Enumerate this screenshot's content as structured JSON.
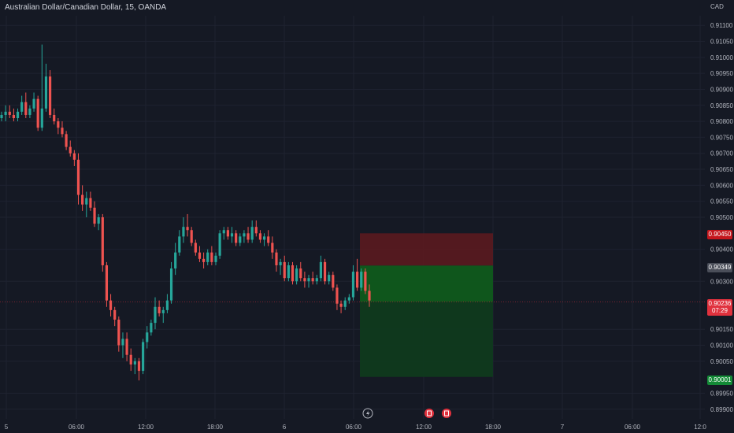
{
  "header": {
    "symbol_title": "Australian Dollar/Canadian Dollar, 15, OANDA",
    "currency": "CAD"
  },
  "price_axis": {
    "ticks": [
      "0.91100",
      "0.91050",
      "0.91000",
      "0.90950",
      "0.90900",
      "0.90850",
      "0.90800",
      "0.90750",
      "0.90700",
      "0.90650",
      "0.90600",
      "0.90550",
      "0.90500",
      "0.90400",
      "0.90300",
      "0.90150",
      "0.90100",
      "0.90050",
      "0.89950",
      "0.89900"
    ],
    "tag_stop": "0.90450",
    "tag_target": "0.90001",
    "tag_close": "0.90349",
    "tag_last_price": "0.90236",
    "tag_last_timer": "07:29"
  },
  "time_axis": {
    "labels": [
      "5",
      "06:00",
      "12:00",
      "18:00",
      "6",
      "06:00",
      "12:00",
      "18:00",
      "7",
      "06:00",
      "12:0"
    ]
  },
  "markers": {
    "flash_icon": "lightning-icon",
    "event_icons": [
      "calendar-event-icon",
      "calendar-event-icon"
    ]
  },
  "colors": {
    "background": "#151924",
    "bull": "#26a69a",
    "bear": "#ef5350",
    "stop_zone": "#5a1a1f",
    "target_zone": "#0f5a1c",
    "target_zone_light": "#0f3a1e"
  },
  "chart_data": {
    "type": "candlestick",
    "symbol": "Australian Dollar/Canadian Dollar, 15, OANDA",
    "ylim": [
      0.8987,
      0.9113
    ],
    "x_labels": [
      "5",
      "06:00",
      "12:00",
      "18:00",
      "6",
      "06:00",
      "12:00",
      "18:00",
      "7",
      "06:00",
      "12:0"
    ],
    "position_tool": {
      "type": "short",
      "entry": 0.90349,
      "stop": 0.9045,
      "target": 0.90001
    },
    "last_price": 0.90236,
    "candles": [
      [
        0.9081,
        0.9083,
        0.908,
        0.9082
      ],
      [
        0.9082,
        0.9085,
        0.908,
        0.9083
      ],
      [
        0.9083,
        0.9085,
        0.9081,
        0.9082
      ],
      [
        0.9082,
        0.9084,
        0.908,
        0.9081
      ],
      [
        0.9081,
        0.9084,
        0.908,
        0.9083
      ],
      [
        0.9083,
        0.9088,
        0.9082,
        0.9086
      ],
      [
        0.9086,
        0.9089,
        0.9081,
        0.9082
      ],
      [
        0.9082,
        0.9085,
        0.9081,
        0.9084
      ],
      [
        0.9084,
        0.9089,
        0.9083,
        0.9087
      ],
      [
        0.9087,
        0.9088,
        0.9077,
        0.9078
      ],
      [
        0.9078,
        0.9104,
        0.9077,
        0.9084
      ],
      [
        0.9084,
        0.9098,
        0.9083,
        0.9094
      ],
      [
        0.9094,
        0.9096,
        0.9081,
        0.9082
      ],
      [
        0.9082,
        0.9084,
        0.9079,
        0.908
      ],
      [
        0.908,
        0.9081,
        0.9076,
        0.9078
      ],
      [
        0.9078,
        0.908,
        0.9075,
        0.9076
      ],
      [
        0.9076,
        0.9077,
        0.9071,
        0.9072
      ],
      [
        0.9072,
        0.9074,
        0.9069,
        0.907
      ],
      [
        0.907,
        0.9071,
        0.9066,
        0.9068
      ],
      [
        0.9068,
        0.907,
        0.9054,
        0.9057
      ],
      [
        0.9057,
        0.906,
        0.9052,
        0.9054
      ],
      [
        0.9054,
        0.9058,
        0.905,
        0.9056
      ],
      [
        0.9056,
        0.9058,
        0.9052,
        0.9053
      ],
      [
        0.9053,
        0.9055,
        0.9047,
        0.9048
      ],
      [
        0.9048,
        0.9051,
        0.9046,
        0.905
      ],
      [
        0.905,
        0.9051,
        0.9033,
        0.9035
      ],
      [
        0.9035,
        0.9036,
        0.9022,
        0.9024
      ],
      [
        0.9024,
        0.9026,
        0.9019,
        0.9021
      ],
      [
        0.9021,
        0.9022,
        0.9016,
        0.9018
      ],
      [
        0.9018,
        0.9019,
        0.9008,
        0.901
      ],
      [
        0.901,
        0.9014,
        0.9006,
        0.9012
      ],
      [
        0.9012,
        0.9014,
        0.9005,
        0.9007
      ],
      [
        0.9007,
        0.9009,
        0.9002,
        0.9004
      ],
      [
        0.9004,
        0.9006,
        0.9001,
        0.9005
      ],
      [
        0.9005,
        0.9006,
        0.8999,
        0.9002
      ],
      [
        0.9002,
        0.9012,
        0.9001,
        0.9011
      ],
      [
        0.9011,
        0.9016,
        0.9009,
        0.9014
      ],
      [
        0.9014,
        0.9018,
        0.9013,
        0.9017
      ],
      [
        0.9017,
        0.9025,
        0.9015,
        0.9022
      ],
      [
        0.9022,
        0.9024,
        0.9019,
        0.902
      ],
      [
        0.902,
        0.9022,
        0.9017,
        0.9021
      ],
      [
        0.9021,
        0.9026,
        0.902,
        0.9024
      ],
      [
        0.9024,
        0.9036,
        0.9023,
        0.9034
      ],
      [
        0.9034,
        0.9042,
        0.9032,
        0.9039
      ],
      [
        0.9039,
        0.9046,
        0.9038,
        0.9044
      ],
      [
        0.9044,
        0.905,
        0.9042,
        0.9047
      ],
      [
        0.9047,
        0.9051,
        0.9044,
        0.9046
      ],
      [
        0.9046,
        0.9047,
        0.9041,
        0.9042
      ],
      [
        0.9042,
        0.9043,
        0.9038,
        0.9039
      ],
      [
        0.9039,
        0.9041,
        0.9036,
        0.9037
      ],
      [
        0.9037,
        0.9039,
        0.9034,
        0.9036
      ],
      [
        0.9036,
        0.904,
        0.9035,
        0.9039
      ],
      [
        0.9039,
        0.9041,
        0.9035,
        0.9036
      ],
      [
        0.9036,
        0.9039,
        0.9035,
        0.9038
      ],
      [
        0.9038,
        0.9046,
        0.9037,
        0.9045
      ],
      [
        0.9045,
        0.9047,
        0.9043,
        0.9046
      ],
      [
        0.9046,
        0.9047,
        0.9043,
        0.9044
      ],
      [
        0.9044,
        0.9047,
        0.9042,
        0.9045
      ],
      [
        0.9045,
        0.9046,
        0.9041,
        0.9042
      ],
      [
        0.9042,
        0.9045,
        0.9041,
        0.9044
      ],
      [
        0.9044,
        0.9046,
        0.9042,
        0.9045
      ],
      [
        0.9045,
        0.9047,
        0.9042,
        0.9043
      ],
      [
        0.9043,
        0.9049,
        0.9042,
        0.9047
      ],
      [
        0.9047,
        0.9049,
        0.9044,
        0.9045
      ],
      [
        0.9045,
        0.9046,
        0.9042,
        0.9043
      ],
      [
        0.9043,
        0.9045,
        0.9041,
        0.9044
      ],
      [
        0.9044,
        0.9046,
        0.9041,
        0.9042
      ],
      [
        0.9042,
        0.9044,
        0.9037,
        0.9039
      ],
      [
        0.9039,
        0.904,
        0.9033,
        0.9035
      ],
      [
        0.9035,
        0.9037,
        0.9032,
        0.9036
      ],
      [
        0.9036,
        0.9038,
        0.903,
        0.9031
      ],
      [
        0.9031,
        0.9036,
        0.903,
        0.9035
      ],
      [
        0.9035,
        0.9036,
        0.9029,
        0.903
      ],
      [
        0.903,
        0.9035,
        0.9029,
        0.9034
      ],
      [
        0.9034,
        0.9036,
        0.903,
        0.9031
      ],
      [
        0.9031,
        0.9033,
        0.9028,
        0.903
      ],
      [
        0.903,
        0.9032,
        0.9028,
        0.9031
      ],
      [
        0.9031,
        0.9033,
        0.9029,
        0.903
      ],
      [
        0.903,
        0.9032,
        0.9029,
        0.9031
      ],
      [
        0.9031,
        0.9038,
        0.903,
        0.9036
      ],
      [
        0.9036,
        0.9037,
        0.9029,
        0.903
      ],
      [
        0.903,
        0.9033,
        0.9029,
        0.9032
      ],
      [
        0.9032,
        0.9033,
        0.9027,
        0.9028
      ],
      [
        0.9028,
        0.9029,
        0.9021,
        0.9023
      ],
      [
        0.9023,
        0.9024,
        0.902,
        0.9022
      ],
      [
        0.9022,
        0.9025,
        0.9021,
        0.9024
      ],
      [
        0.9024,
        0.9026,
        0.9023,
        0.9025
      ],
      [
        0.9025,
        0.9035,
        0.9024,
        0.9033
      ],
      [
        0.9033,
        0.9037,
        0.9027,
        0.9028
      ],
      [
        0.9028,
        0.9034,
        0.9027,
        0.9033
      ],
      [
        0.9033,
        0.9034,
        0.9026,
        0.9027
      ],
      [
        0.9027,
        0.9029,
        0.9022,
        0.9024
      ]
    ]
  }
}
